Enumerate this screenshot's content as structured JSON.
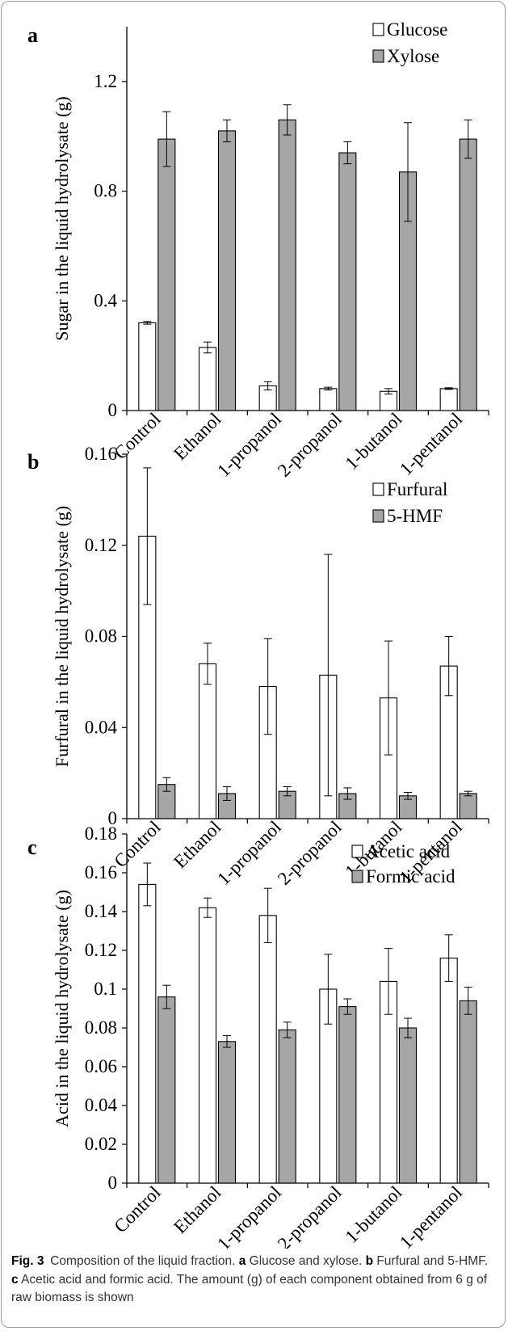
{
  "chart_data": [
    {
      "type": "bar",
      "panel": "a",
      "ylabel": "Sugar in the liquid  hydrolysate (g)",
      "ylim": [
        0,
        1.4
      ],
      "yticks": [
        "0",
        "0.4",
        "0.8",
        "1.2"
      ],
      "ytick_values": [
        0,
        0.4,
        0.8,
        1.2
      ],
      "categories": [
        "Control",
        "Ethanol",
        "1-propanol",
        "2-propanol",
        "1-butanol",
        "1-pentanol"
      ],
      "legend": "top-right",
      "series": [
        {
          "name": "Glucose",
          "color": "#ffffff",
          "values": [
            0.32,
            0.23,
            0.09,
            0.08,
            0.07,
            0.08
          ],
          "errors": [
            0.005,
            0.02,
            0.015,
            0.005,
            0.01,
            0.003
          ]
        },
        {
          "name": "Xylose",
          "color": "#a6a6a6",
          "values": [
            0.99,
            1.02,
            1.06,
            0.94,
            0.87,
            0.99
          ],
          "errors": [
            0.1,
            0.04,
            0.055,
            0.04,
            0.18,
            0.07
          ]
        }
      ]
    },
    {
      "type": "bar",
      "panel": "b",
      "ylabel": "Furfural in the liquid  hydrolysate (g)",
      "ylim": [
        0,
        0.16
      ],
      "yticks": [
        "0",
        "0.04",
        "0.08",
        "0.12",
        "0.16"
      ],
      "ytick_values": [
        0,
        0.04,
        0.08,
        0.12,
        0.16
      ],
      "categories": [
        "Control",
        "Ethanol",
        "1-propanol",
        "2-propanol",
        "1-butanol",
        "1-pentanol"
      ],
      "legend": "top-right",
      "series": [
        {
          "name": "Furfural",
          "color": "#ffffff",
          "values": [
            0.124,
            0.068,
            0.058,
            0.063,
            0.053,
            0.067
          ],
          "errors": [
            0.03,
            0.009,
            0.021,
            0.053,
            0.025,
            0.013
          ]
        },
        {
          "name": "5-HMF",
          "color": "#a6a6a6",
          "values": [
            0.015,
            0.011,
            0.012,
            0.011,
            0.01,
            0.011
          ],
          "errors": [
            0.003,
            0.003,
            0.002,
            0.0025,
            0.0015,
            0.001
          ]
        }
      ]
    },
    {
      "type": "bar",
      "panel": "c",
      "ylabel": "Acid in the liquid  hydrolysate (g)",
      "ylim": [
        0,
        0.18
      ],
      "yticks": [
        "0",
        "0.02",
        "0.04",
        "0.06",
        "0.08",
        "0.1",
        "0.12",
        "0.14",
        "0.16",
        "0.18"
      ],
      "ytick_values": [
        0,
        0.02,
        0.04,
        0.06,
        0.08,
        0.1,
        0.12,
        0.14,
        0.16,
        0.18
      ],
      "categories": [
        "Control",
        "Ethanol",
        "1-propanol",
        "2-propanol",
        "1-butanol",
        "1-pentanol"
      ],
      "legend": "top-right",
      "series": [
        {
          "name": "Acetic acid",
          "color": "#ffffff",
          "values": [
            0.154,
            0.142,
            0.138,
            0.1,
            0.104,
            0.116
          ],
          "errors": [
            0.011,
            0.005,
            0.014,
            0.018,
            0.017,
            0.012
          ]
        },
        {
          "name": "Formic acid",
          "color": "#a6a6a6",
          "values": [
            0.096,
            0.073,
            0.079,
            0.091,
            0.08,
            0.094
          ],
          "errors": [
            0.006,
            0.003,
            0.004,
            0.004,
            0.005,
            0.007
          ]
        }
      ]
    }
  ],
  "caption": {
    "label": "Fig. 3",
    "title": "Composition of the liquid fraction.",
    "parts": [
      {
        "letter": "a",
        "text": "Glucose and xylose."
      },
      {
        "letter": "b",
        "text": "Furfural and 5-HMF."
      },
      {
        "letter": "c",
        "text": "Acetic acid and formic acid. The amount (g) of each component obtained from 6 g of raw biomass is shown"
      }
    ]
  }
}
